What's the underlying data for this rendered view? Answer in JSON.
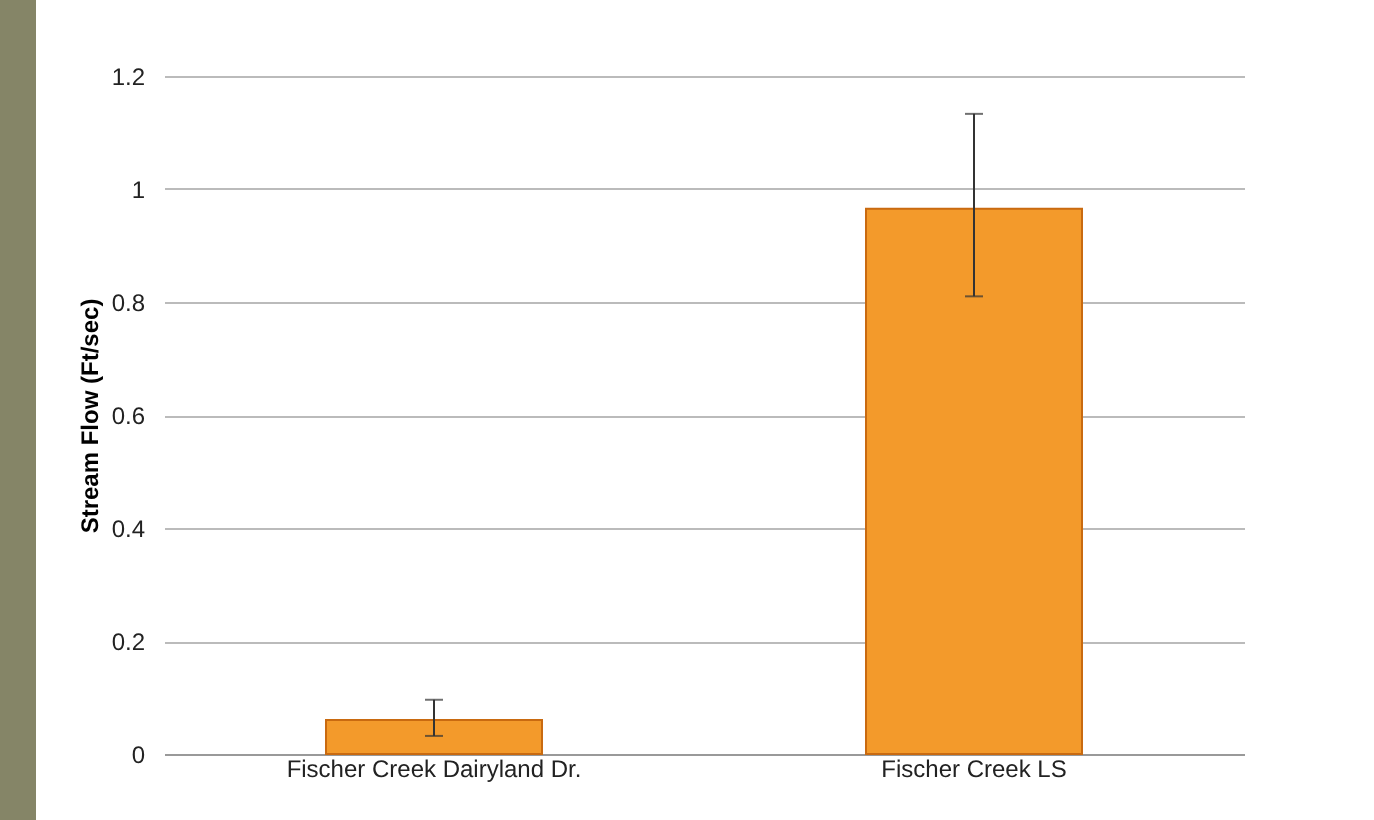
{
  "chart_data": {
    "type": "bar",
    "ylabel": "Stream Flow (Ft/sec)",
    "categories": [
      "Fischer Creek Dairyland Dr.",
      "Fischer Creek LS"
    ],
    "values": [
      0.06,
      0.965
    ],
    "errors": [
      [
        0.032,
        0.096
      ],
      [
        0.81,
        1.133
      ]
    ],
    "color": "#f39a2b",
    "ylim": [
      0,
      1.2
    ],
    "yticks": [
      0,
      0.2,
      0.4,
      0.6,
      0.8,
      1,
      1.2
    ],
    "grid": "y"
  }
}
